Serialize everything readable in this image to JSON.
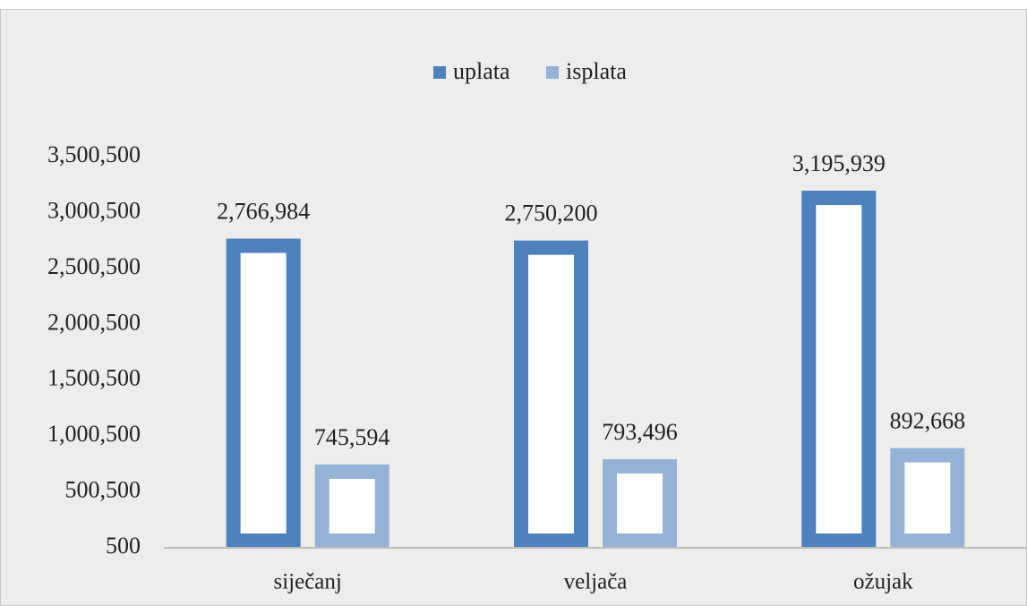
{
  "chart_data": {
    "type": "bar",
    "categories": [
      "siječanj",
      "veljača",
      "ožujak"
    ],
    "series": [
      {
        "name": "uplata",
        "color": "#4f81bd",
        "values": [
          2766984,
          2750200,
          3195939
        ],
        "value_labels": [
          "2,766,984",
          "2,750,200",
          "3,195,939"
        ]
      },
      {
        "name": "isplata",
        "color": "#95b3d7",
        "values": [
          745594,
          793496,
          892668
        ],
        "value_labels": [
          "745,594",
          "793,496",
          "892,668"
        ]
      }
    ],
    "ylim": [
      500,
      3500500
    ],
    "yticks": [
      500,
      {
        "value": 500500,
        "label": "500,500"
      },
      {
        "value": 1000500,
        "label": "1,000,500"
      },
      {
        "value": 1500500,
        "label": "1,500,500"
      },
      {
        "value": 2000500,
        "label": "2,000,500"
      },
      {
        "value": 2500500,
        "label": "2,500,500"
      },
      {
        "value": 3000500,
        "label": "3,000,500"
      },
      {
        "value": 3500500,
        "label": "3,500,500"
      }
    ],
    "legend": "top",
    "grid": false
  }
}
